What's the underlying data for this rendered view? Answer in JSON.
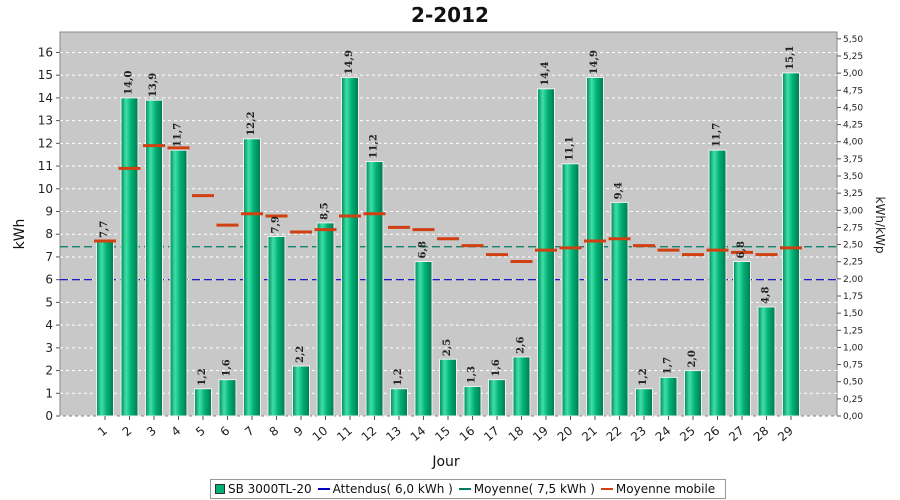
{
  "chart_data": {
    "type": "bar",
    "title": "2-2012",
    "xlabel": "Jour",
    "ylabel": "kWh",
    "y2label": "kWh/kWp",
    "ylim": [
      0,
      16.9
    ],
    "y2lim": [
      0,
      5.6
    ],
    "yticks": [
      0,
      1,
      2,
      3,
      4,
      5,
      6,
      7,
      8,
      9,
      10,
      11,
      12,
      13,
      14,
      15,
      16
    ],
    "y2ticks": [
      "0,00",
      "0,25",
      "0,50",
      "0,75",
      "1,00",
      "1,25",
      "1,50",
      "1,75",
      "2,00",
      "2,25",
      "2,50",
      "2,75",
      "3,00",
      "3,25",
      "3,50",
      "3,75",
      "4,00",
      "4,25",
      "4,50",
      "4,75",
      "5,00",
      "5,25",
      "5,50"
    ],
    "categories": [
      "1",
      "2",
      "3",
      "4",
      "5",
      "6",
      "7",
      "8",
      "9",
      "10",
      "11",
      "12",
      "13",
      "14",
      "15",
      "16",
      "17",
      "18",
      "19",
      "20",
      "21",
      "22",
      "23",
      "24",
      "25",
      "26",
      "27",
      "28",
      "29"
    ],
    "series": [
      {
        "name": "SB 3000TL-20",
        "values": [
          7.7,
          14.0,
          13.9,
          11.7,
          1.2,
          1.6,
          12.2,
          7.9,
          2.2,
          8.5,
          14.9,
          11.2,
          1.2,
          6.8,
          2.5,
          1.3,
          1.6,
          2.6,
          14.4,
          11.1,
          14.9,
          9.4,
          1.2,
          1.7,
          2.0,
          11.7,
          6.8,
          4.8,
          15.1
        ],
        "labels": [
          "7,7",
          "14,0",
          "13,9",
          "11,7",
          "1,2",
          "1,6",
          "12,2",
          "7,9",
          "2,2",
          "8,5",
          "14,9",
          "11,2",
          "1,2",
          "6,8",
          "2,5",
          "1,3",
          "1,6",
          "2,6",
          "14,4",
          "11,1",
          "14,9",
          "9,4",
          "1,2",
          "1,7",
          "2,0",
          "11,7",
          "6,8",
          "4,8",
          "15,1"
        ]
      },
      {
        "name": "Moyenne mobile",
        "values": [
          7.7,
          10.9,
          11.9,
          11.8,
          9.7,
          8.4,
          8.9,
          8.8,
          8.1,
          8.2,
          8.8,
          8.9,
          8.3,
          8.2,
          7.8,
          7.5,
          7.1,
          6.8,
          7.3,
          7.4,
          7.7,
          7.8,
          7.5,
          7.3,
          7.1,
          7.3,
          7.2,
          7.1,
          7.4
        ]
      }
    ],
    "reference_lines": [
      {
        "name": "Attendus( 6,0 kWh )",
        "value": 6.0
      },
      {
        "name": "Moyenne( 7,5 kWh )",
        "value": 7.45
      }
    ],
    "grid": true,
    "legend_position": "bottom",
    "colors": {
      "bar_fill": "#00b074",
      "bar_light": "#40e0a8",
      "bar_dark": "#008a5a",
      "expected_line": "#0000c0",
      "average_line": "#007a60",
      "moving_avg": "#d04010",
      "plot_bg": "#c8c8c8"
    }
  },
  "legend": {
    "items": [
      {
        "label": "SB 3000TL-20",
        "kind": "bar",
        "color": "#00b074"
      },
      {
        "label": "Attendus( 6,0 kWh )",
        "kind": "line",
        "color": "#0000c0"
      },
      {
        "label": "Moyenne( 7,5 kWh )",
        "kind": "line",
        "color": "#007a60"
      },
      {
        "label": "Moyenne mobile",
        "kind": "line",
        "color": "#d04010"
      }
    ]
  }
}
